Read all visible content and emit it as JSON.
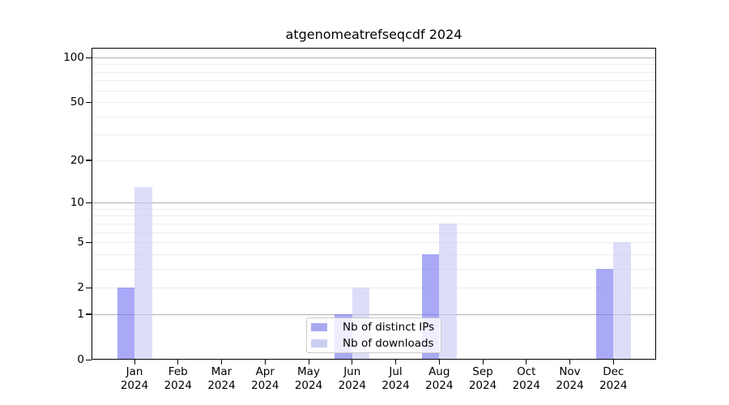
{
  "chart_data": {
    "type": "bar",
    "title": "atgenomeatrefseqcdf 2024",
    "categories": [
      "Jan 2024",
      "Feb 2024",
      "Mar 2024",
      "Apr 2024",
      "May 2024",
      "Jun 2024",
      "Jul 2024",
      "Aug 2024",
      "Sep 2024",
      "Oct 2024",
      "Nov 2024",
      "Dec 2024"
    ],
    "x_tick_labels": [
      {
        "month": "Jan",
        "year": "2024"
      },
      {
        "month": "Feb",
        "year": "2024"
      },
      {
        "month": "Mar",
        "year": "2024"
      },
      {
        "month": "Apr",
        "year": "2024"
      },
      {
        "month": "May",
        "year": "2024"
      },
      {
        "month": "Jun",
        "year": "2024"
      },
      {
        "month": "Jul",
        "year": "2024"
      },
      {
        "month": "Aug",
        "year": "2024"
      },
      {
        "month": "Sep",
        "year": "2024"
      },
      {
        "month": "Oct",
        "year": "2024"
      },
      {
        "month": "Nov",
        "year": "2024"
      },
      {
        "month": "Dec",
        "year": "2024"
      }
    ],
    "series": [
      {
        "name": "Nb of distinct IPs",
        "color": "rgba(112,112,243,0.6)",
        "swatch_color": "#a9a9f0",
        "values": [
          2,
          0,
          0,
          0,
          0,
          1,
          0,
          4,
          0,
          0,
          0,
          3
        ]
      },
      {
        "name": "Nb of downloads",
        "color": "rgba(198,198,244,0.6)",
        "swatch_color": "#cdcdf3",
        "values": [
          13,
          0,
          0,
          0,
          0,
          2,
          0,
          7,
          0,
          0,
          0,
          5
        ]
      }
    ],
    "y_axis": {
      "scale": "log10(1+y)",
      "tick_values": [
        0,
        1,
        2,
        5,
        10,
        20,
        50,
        100
      ],
      "tick_labels": [
        "0",
        "1",
        "2",
        "5",
        "10",
        "20",
        "50",
        "100"
      ],
      "major_gridline_values": [
        1,
        10,
        100
      ],
      "minor_gridline_values": [
        2,
        3,
        4,
        5,
        6,
        7,
        8,
        9,
        20,
        30,
        40,
        50,
        60,
        70,
        80,
        90
      ],
      "ylim": [
        0,
        116
      ]
    },
    "legend_position": "bottom-center",
    "colors": {
      "grid_major": "#b0b0b0",
      "grid_minor": "#ededed",
      "axis": "#000000",
      "background": "#ffffff"
    }
  }
}
